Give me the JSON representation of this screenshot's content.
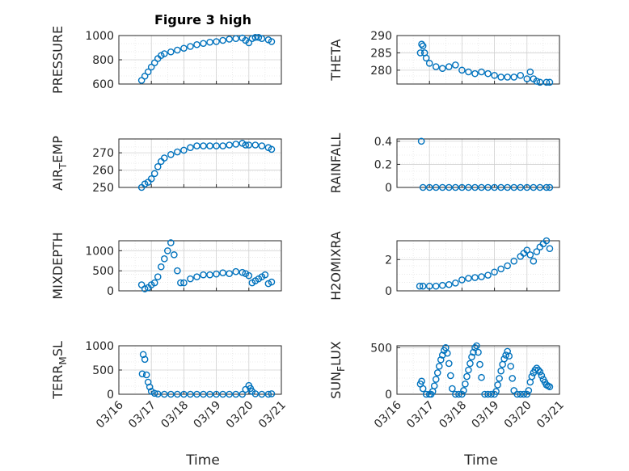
{
  "figure": {
    "title": "Figure 3 high",
    "xlabel": "Time",
    "marker_color": "#0072bd",
    "axis_color": "#262626",
    "grid_color": "#dcdcdc",
    "x_dates": [
      "03/16",
      "03/17",
      "03/18",
      "03/19",
      "03/20",
      "03/21"
    ]
  },
  "chart_data": [
    {
      "type": "scatter",
      "ylabel": "PRESSURE",
      "xlim": [
        0,
        5
      ],
      "ylim": [
        600,
        1000
      ],
      "yticks": [
        600,
        800,
        1000
      ],
      "grid": true,
      "x": [
        0.7,
        0.8,
        0.9,
        1.0,
        1.1,
        1.2,
        1.3,
        1.4,
        1.6,
        1.8,
        2.0,
        2.2,
        2.4,
        2.6,
        2.8,
        3.0,
        3.2,
        3.4,
        3.6,
        3.8,
        3.9,
        4.0,
        4.1,
        4.2,
        4.3,
        4.4,
        4.6,
        4.7
      ],
      "y": [
        630,
        665,
        700,
        740,
        775,
        810,
        835,
        850,
        865,
        880,
        895,
        910,
        925,
        935,
        945,
        950,
        960,
        970,
        975,
        980,
        960,
        940,
        975,
        985,
        985,
        975,
        965,
        950
      ]
    },
    {
      "type": "scatter",
      "ylabel": "THETA",
      "xlim": [
        0,
        5
      ],
      "ylim": [
        276,
        290
      ],
      "yticks": [
        280,
        285,
        290
      ],
      "grid": true,
      "x": [
        0.72,
        0.76,
        0.8,
        0.85,
        0.9,
        1.0,
        1.2,
        1.4,
        1.6,
        1.8,
        2.0,
        2.2,
        2.4,
        2.6,
        2.8,
        3.0,
        3.2,
        3.4,
        3.6,
        3.8,
        4.0,
        4.1,
        4.2,
        4.3,
        4.4,
        4.6,
        4.7
      ],
      "y": [
        285,
        287.5,
        287,
        285,
        283.5,
        282,
        281,
        280.5,
        281,
        281.5,
        280,
        279.5,
        279,
        279.5,
        279,
        278.5,
        278,
        278,
        278,
        278.5,
        277.5,
        279.5,
        277.5,
        276.8,
        276.5,
        276.5,
        276.5
      ]
    },
    {
      "type": "scatter",
      "ylabel": "AIR_TEMP",
      "xlim": [
        0,
        5
      ],
      "ylim": [
        250,
        278
      ],
      "yticks": [
        250,
        260,
        270
      ],
      "grid": true,
      "x": [
        0.7,
        0.8,
        0.9,
        1.0,
        1.1,
        1.2,
        1.3,
        1.4,
        1.6,
        1.8,
        2.0,
        2.2,
        2.4,
        2.6,
        2.8,
        3.0,
        3.2,
        3.4,
        3.6,
        3.8,
        3.9,
        4.0,
        4.2,
        4.4,
        4.6,
        4.7
      ],
      "y": [
        250,
        252,
        253,
        255,
        258,
        262,
        265,
        267,
        269,
        270.5,
        271.5,
        273,
        274,
        274,
        274,
        274,
        274,
        274.5,
        275,
        275.5,
        274.5,
        274.5,
        274.5,
        274,
        273,
        272
      ]
    },
    {
      "type": "scatter",
      "ylabel": "RAINFALL",
      "xlim": [
        0,
        5
      ],
      "ylim": [
        0,
        0.42
      ],
      "yticks": [
        0,
        0.2,
        0.4
      ],
      "grid": true,
      "x": [
        0.75,
        0.8,
        1.0,
        1.2,
        1.4,
        1.6,
        1.8,
        2.0,
        2.2,
        2.4,
        2.6,
        2.8,
        3.0,
        3.2,
        3.4,
        3.6,
        3.8,
        4.0,
        4.2,
        4.4,
        4.6,
        4.7
      ],
      "y": [
        0.4,
        0,
        0,
        0,
        0,
        0,
        0,
        0,
        0,
        0,
        0,
        0,
        0,
        0,
        0,
        0,
        0,
        0,
        0,
        0,
        0,
        0
      ]
    },
    {
      "type": "scatter",
      "ylabel": "MIXDEPTH",
      "xlim": [
        0,
        5
      ],
      "ylim": [
        0,
        1250
      ],
      "yticks": [
        0,
        500,
        1000
      ],
      "grid": true,
      "x": [
        0.7,
        0.8,
        0.9,
        1.0,
        1.1,
        1.2,
        1.3,
        1.4,
        1.5,
        1.6,
        1.7,
        1.8,
        1.9,
        2.0,
        2.2,
        2.4,
        2.6,
        2.8,
        3.0,
        3.2,
        3.4,
        3.6,
        3.8,
        3.9,
        4.0,
        4.1,
        4.2,
        4.3,
        4.4,
        4.5,
        4.6,
        4.7
      ],
      "y": [
        150,
        50,
        80,
        150,
        200,
        350,
        600,
        800,
        1000,
        1200,
        900,
        500,
        200,
        200,
        300,
        350,
        400,
        400,
        420,
        450,
        430,
        480,
        460,
        430,
        380,
        200,
        250,
        300,
        350,
        400,
        180,
        220
      ]
    },
    {
      "type": "scatter",
      "ylabel": "H2OMIXRA",
      "xlim": [
        0,
        5
      ],
      "ylim": [
        0,
        3.2
      ],
      "yticks": [
        0,
        2
      ],
      "grid": true,
      "x": [
        0.7,
        0.8,
        1.0,
        1.2,
        1.4,
        1.6,
        1.8,
        2.0,
        2.2,
        2.4,
        2.6,
        2.8,
        3.0,
        3.2,
        3.4,
        3.6,
        3.8,
        3.9,
        4.0,
        4.1,
        4.2,
        4.3,
        4.4,
        4.5,
        4.6,
        4.7
      ],
      "y": [
        0.3,
        0.3,
        0.3,
        0.3,
        0.35,
        0.4,
        0.5,
        0.7,
        0.8,
        0.85,
        0.9,
        1.0,
        1.2,
        1.4,
        1.6,
        1.9,
        2.2,
        2.4,
        2.6,
        2.3,
        1.9,
        2.5,
        2.8,
        3.0,
        3.2,
        2.7
      ]
    },
    {
      "type": "scatter",
      "ylabel": "TERR_MSL",
      "xlim": [
        0,
        5
      ],
      "ylim": [
        0,
        1000
      ],
      "yticks": [
        0,
        500,
        1000
      ],
      "grid": true,
      "x": [
        0.72,
        0.75,
        0.8,
        0.85,
        0.9,
        0.95,
        1.0,
        1.1,
        1.2,
        1.4,
        1.6,
        1.8,
        2.0,
        2.2,
        2.4,
        2.6,
        2.8,
        3.0,
        3.2,
        3.4,
        3.6,
        3.8,
        3.9,
        4.0,
        4.05,
        4.1,
        4.2,
        4.4,
        4.6,
        4.7
      ],
      "y": [
        420,
        820,
        720,
        400,
        250,
        150,
        60,
        20,
        5,
        0,
        0,
        0,
        0,
        0,
        0,
        0,
        0,
        0,
        0,
        0,
        0,
        0,
        100,
        180,
        120,
        60,
        10,
        0,
        0,
        10
      ]
    },
    {
      "type": "scatter",
      "ylabel": "SUN_FLUX",
      "xlim": [
        0,
        5
      ],
      "ylim": [
        0,
        520
      ],
      "yticks": [
        0,
        500
      ],
      "grid": true,
      "x": [
        0.72,
        0.76,
        0.8,
        0.9,
        1.0,
        1.05,
        1.1,
        1.15,
        1.2,
        1.25,
        1.3,
        1.35,
        1.4,
        1.45,
        1.5,
        1.55,
        1.6,
        1.65,
        1.7,
        1.8,
        1.9,
        2.0,
        2.05,
        2.1,
        2.15,
        2.2,
        2.25,
        2.3,
        2.35,
        2.4,
        2.45,
        2.5,
        2.55,
        2.6,
        2.7,
        2.8,
        2.9,
        3.0,
        3.05,
        3.1,
        3.15,
        3.2,
        3.25,
        3.3,
        3.35,
        3.4,
        3.45,
        3.5,
        3.55,
        3.6,
        3.7,
        3.8,
        3.9,
        4.0,
        4.05,
        4.1,
        4.15,
        4.2,
        4.25,
        4.3,
        4.35,
        4.4,
        4.45,
        4.5,
        4.55,
        4.6,
        4.65,
        4.7
      ],
      "y": [
        110,
        140,
        60,
        0,
        0,
        0,
        30,
        90,
        160,
        230,
        300,
        370,
        420,
        470,
        500,
        440,
        330,
        200,
        60,
        0,
        0,
        0,
        40,
        110,
        190,
        260,
        330,
        400,
        450,
        500,
        520,
        450,
        320,
        180,
        0,
        0,
        0,
        0,
        30,
        100,
        170,
        250,
        320,
        380,
        420,
        460,
        410,
        300,
        170,
        40,
        0,
        0,
        0,
        0,
        40,
        130,
        190,
        230,
        260,
        280,
        260,
        240,
        200,
        160,
        130,
        100,
        90,
        80
      ]
    }
  ]
}
